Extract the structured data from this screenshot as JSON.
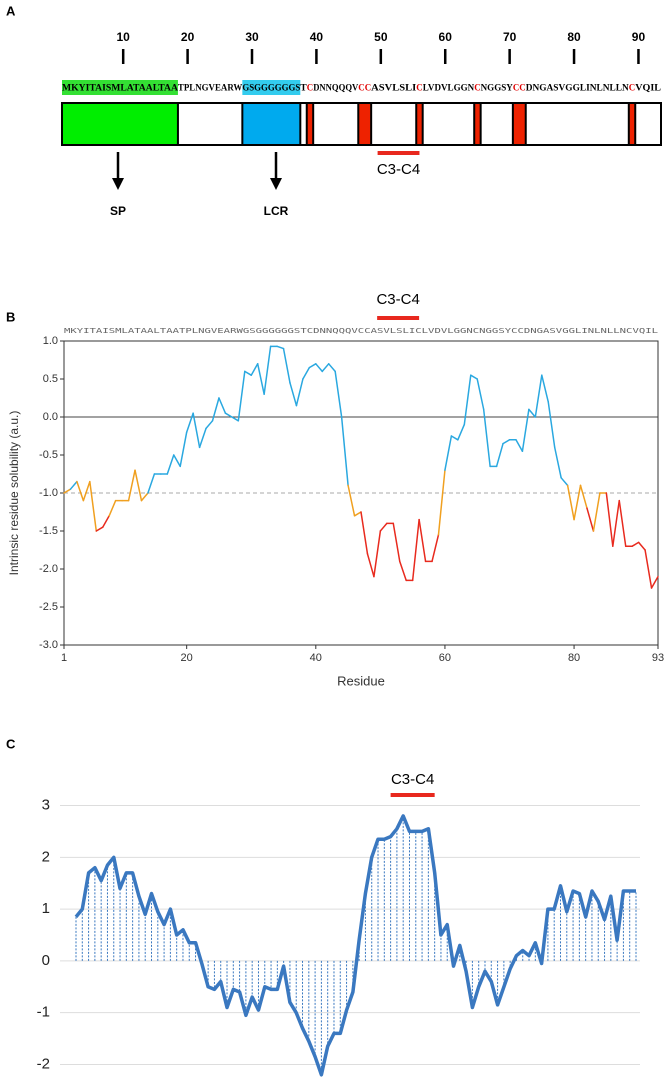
{
  "panel_a": {
    "letter": "A",
    "ruler": [
      10,
      20,
      30,
      40,
      50,
      60,
      70,
      80,
      90
    ],
    "residue_count": 93,
    "sequence_segments": [
      {
        "text": "MKYITAISMLATAALTAA",
        "bg": "#33e033"
      },
      {
        "text": "TPLNGVEARW"
      },
      {
        "text": "GSGGGGGGS",
        "bg": "#33ccee"
      },
      {
        "text": "T"
      },
      {
        "text": "C",
        "color": "#e00000"
      },
      {
        "text": "DNNQQQV"
      },
      {
        "text": "CC",
        "color": "#e00000"
      },
      {
        "text": "ASVLSLI"
      },
      {
        "text": "C",
        "color": "#e00000"
      },
      {
        "text": "LVDVLGGN"
      },
      {
        "text": "C",
        "color": "#e00000"
      },
      {
        "text": "NGGSY"
      },
      {
        "text": "CC",
        "color": "#e00000"
      },
      {
        "text": "DNGASVGGLINLNLLN"
      },
      {
        "text": "C",
        "color": "#e00000"
      },
      {
        "text": "VQIL"
      }
    ],
    "regions": [
      {
        "start": 1,
        "end": 18,
        "color": "#00ee00"
      },
      {
        "start": 29,
        "end": 37,
        "color": "#00aaee"
      },
      {
        "start": 39,
        "end": 39,
        "color": "#ee2200"
      },
      {
        "start": 47,
        "end": 48,
        "color": "#ee2200"
      },
      {
        "start": 56,
        "end": 56,
        "color": "#ee2200"
      },
      {
        "start": 65,
        "end": 65,
        "color": "#ee2200"
      },
      {
        "start": 71,
        "end": 72,
        "color": "#ee2200"
      },
      {
        "start": 89,
        "end": 89,
        "color": "#ee2200"
      }
    ],
    "annotation": {
      "text": "C3-C4",
      "start": 49.5,
      "end": 56
    },
    "arrows": [
      {
        "label": "SP"
      },
      {
        "label": "LCR"
      }
    ]
  },
  "chart_data": [
    {
      "type": "line",
      "letter": "B",
      "annotation": {
        "text": "C3-C4",
        "start": 49.5,
        "end": 56
      },
      "sequence_label": "MKYITAISMLATAALTAATPLNGVEARWGSGGGGGGSTCDNNQQQVCCASVLSLICLVDVLGGNCNGGSYCCDNGASVGGLINLNLLNCVQIL",
      "y_label": "Intrinsic residue solubility (a.u.)",
      "x_label": "Residue",
      "x": [
        1,
        2,
        3,
        4,
        5,
        6,
        7,
        8,
        9,
        10,
        11,
        12,
        13,
        14,
        15,
        16,
        17,
        18,
        19,
        20,
        21,
        22,
        23,
        24,
        25,
        26,
        27,
        28,
        29,
        30,
        31,
        32,
        33,
        34,
        35,
        36,
        37,
        38,
        39,
        40,
        41,
        42,
        43,
        44,
        45,
        46,
        47,
        48,
        49,
        50,
        51,
        52,
        53,
        54,
        55,
        56,
        57,
        58,
        59,
        60,
        61,
        62,
        63,
        64,
        65,
        66,
        67,
        68,
        69,
        70,
        71,
        72,
        73,
        74,
        75,
        76,
        77,
        78,
        79,
        80,
        81,
        82,
        83,
        84,
        85,
        86,
        87,
        88,
        89,
        90,
        91,
        92,
        93
      ],
      "values": [
        -1.0,
        -0.95,
        -0.85,
        -1.1,
        -0.85,
        -1.5,
        -1.45,
        -1.3,
        -1.1,
        -1.1,
        -1.1,
        -0.7,
        -1.1,
        -1.0,
        -0.75,
        -0.75,
        -0.75,
        -0.5,
        -0.65,
        -0.2,
        0.05,
        -0.4,
        -0.15,
        -0.05,
        0.25,
        0.05,
        0.0,
        -0.05,
        0.6,
        0.55,
        0.7,
        0.3,
        0.93,
        0.93,
        0.9,
        0.45,
        0.15,
        0.5,
        0.65,
        0.7,
        0.6,
        0.7,
        0.6,
        0.0,
        -0.9,
        -1.3,
        -1.25,
        -1.8,
        -2.1,
        -1.5,
        -1.4,
        -1.4,
        -1.9,
        -2.15,
        -2.15,
        -1.35,
        -1.9,
        -1.9,
        -1.55,
        -0.7,
        -0.25,
        -0.3,
        -0.1,
        0.55,
        0.5,
        0.1,
        -0.65,
        -0.65,
        -0.35,
        -0.3,
        -0.3,
        -0.45,
        0.1,
        0.0,
        0.55,
        0.2,
        -0.4,
        -0.8,
        -0.9,
        -1.35,
        -0.9,
        -1.2,
        -1.5,
        -1.0,
        -1.0,
        -1.7,
        -1.1,
        -1.7,
        -1.7,
        -1.65,
        -1.75,
        -2.25,
        -2.1
      ],
      "color_bands": [
        {
          "min": -0.9,
          "color": "#2aa8e0"
        },
        {
          "min": -1.3,
          "color": "#f0a020"
        },
        {
          "color": "#e82a1e"
        }
      ],
      "xlim": [
        1,
        93
      ],
      "xticks": [
        1,
        20,
        40,
        60,
        80,
        93
      ],
      "ylim": [
        -3,
        1
      ],
      "yticks": [
        {
          "value": 1,
          "label": "1.0"
        },
        0.5,
        {
          "value": 0,
          "label": "0.0"
        },
        -0.5,
        {
          "value": -1,
          "label": "-1.0"
        },
        -1.5,
        {
          "value": -2,
          "label": "-2.0"
        },
        -2.5,
        {
          "value": -3,
          "label": "-3.0"
        }
      ],
      "hlines": [
        {
          "value": 0,
          "style": "solid"
        },
        {
          "value": -1,
          "style": "dashed"
        }
      ]
    },
    {
      "type": "line",
      "letter": "C",
      "annotation": {
        "text": "C3-C4",
        "start": 50,
        "end": 57
      },
      "color": "#3a78c0",
      "grid": true,
      "values": [
        0.85,
        1.0,
        1.7,
        1.8,
        1.55,
        1.85,
        2.0,
        1.4,
        1.7,
        1.7,
        1.25,
        0.9,
        1.3,
        0.95,
        0.7,
        1.0,
        0.5,
        0.6,
        0.35,
        0.35,
        -0.05,
        -0.5,
        -0.55,
        -0.4,
        -0.9,
        -0.55,
        -0.6,
        -1.05,
        -0.7,
        -0.95,
        -0.5,
        -0.55,
        -0.55,
        -0.1,
        -0.8,
        -1.0,
        -1.3,
        -1.55,
        -1.85,
        -2.2,
        -1.65,
        -1.4,
        -1.4,
        -0.95,
        -0.6,
        0.4,
        1.3,
        2.0,
        2.35,
        2.35,
        2.4,
        2.55,
        2.8,
        2.5,
        2.5,
        2.5,
        2.55,
        1.7,
        0.5,
        0.7,
        -0.1,
        0.3,
        -0.2,
        -0.9,
        -0.5,
        -0.2,
        -0.4,
        -0.85,
        -0.5,
        -0.15,
        0.1,
        0.2,
        0.1,
        0.35,
        -0.05,
        1.0,
        1.0,
        1.45,
        0.95,
        1.35,
        1.3,
        0.85,
        1.35,
        1.15,
        0.8,
        1.25,
        0.4,
        1.35,
        1.35,
        1.35
      ],
      "ylim": [
        -2.3,
        3.3
      ],
      "yticks": [
        3,
        2,
        1,
        0,
        -1,
        -2
      ]
    }
  ]
}
